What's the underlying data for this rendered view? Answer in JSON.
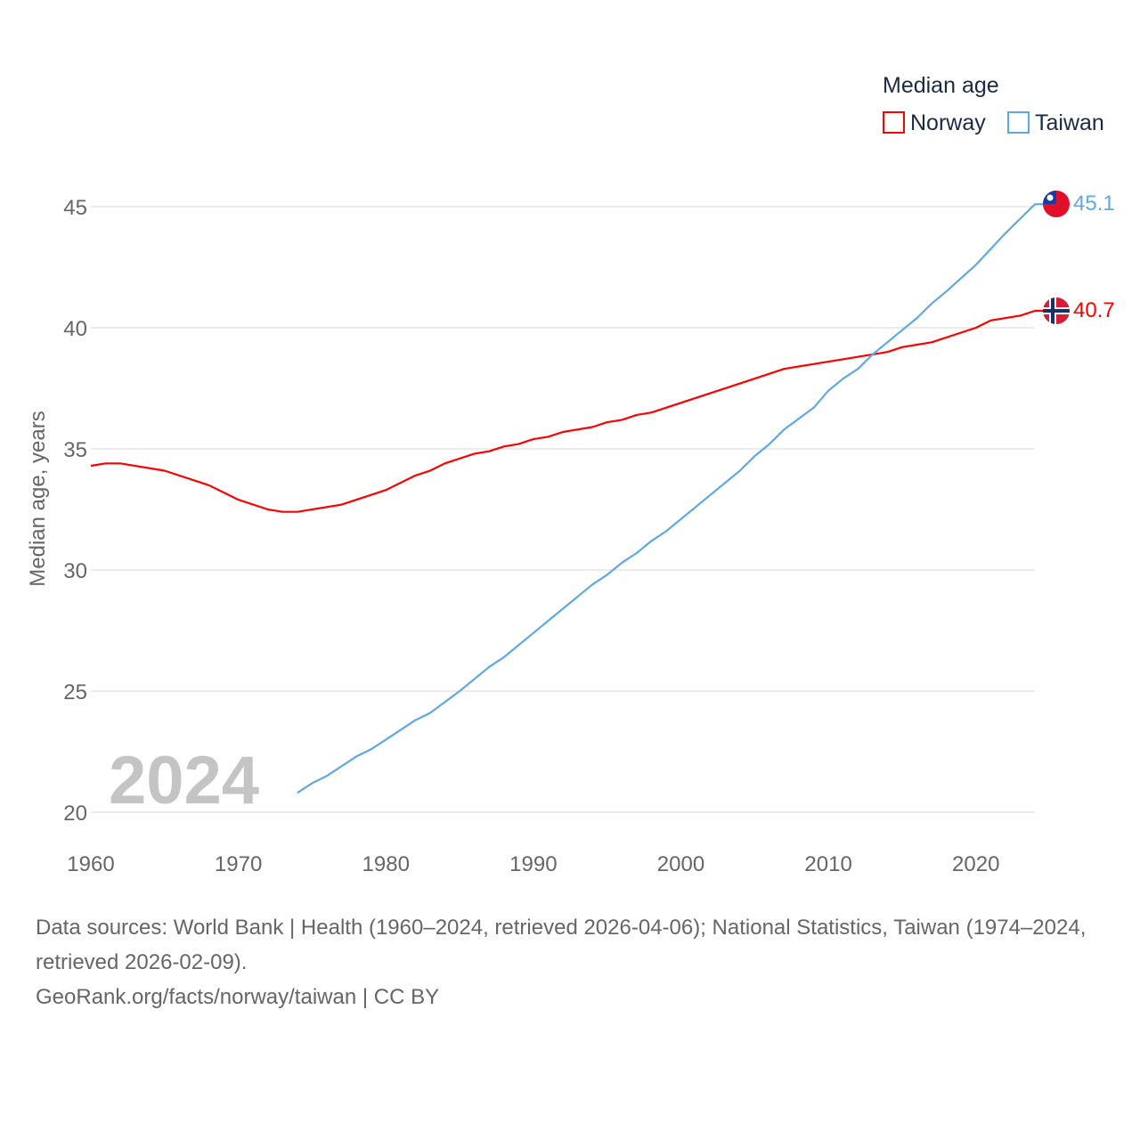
{
  "chart_data": {
    "type": "line",
    "ylabel": "Median age, years",
    "xlabel": "",
    "xlim": [
      1960,
      2024
    ],
    "ylim": [
      20,
      45
    ],
    "yticks": [
      20,
      25,
      30,
      35,
      40,
      45
    ],
    "xticks": [
      1960,
      1970,
      1980,
      1990,
      2000,
      2010,
      2020
    ],
    "grid": true,
    "year_watermark": "2024",
    "legend": {
      "title": "Median age",
      "placement": "top-right"
    },
    "series": [
      {
        "name": "Norway",
        "color": "#ff0000",
        "end_label": "40.7",
        "flag": "norway-flag",
        "x": [
          1960,
          1961,
          1962,
          1965,
          1968,
          1970,
          1972,
          1973,
          1974,
          1977,
          1980,
          1982,
          1983,
          1984,
          1986,
          1987,
          1988,
          1989,
          1990,
          1991,
          1992,
          1994,
          1995,
          1996,
          1997,
          1998,
          2000,
          2004,
          2007,
          2010,
          2013,
          2014,
          2015,
          2017,
          2020,
          2021,
          2023,
          2024
        ],
        "y": [
          34.3,
          34.4,
          34.4,
          34.1,
          33.5,
          32.9,
          32.5,
          32.4,
          32.4,
          32.7,
          33.3,
          33.9,
          34.1,
          34.4,
          34.8,
          34.9,
          35.1,
          35.2,
          35.4,
          35.5,
          35.7,
          35.9,
          36.1,
          36.2,
          36.4,
          36.5,
          36.9,
          37.7,
          38.3,
          38.6,
          38.9,
          39.0,
          39.2,
          39.4,
          40.0,
          40.3,
          40.5,
          40.7
        ]
      },
      {
        "name": "Taiwan",
        "color": "#5fa8e8",
        "end_label": "45.1",
        "flag": "taiwan-flag",
        "x": [
          1974,
          1975,
          1976,
          1978,
          1979,
          1980,
          1982,
          1983,
          1985,
          1987,
          1988,
          1990,
          1991,
          1992,
          1994,
          1995,
          1996,
          1997,
          1998,
          1999,
          2000,
          2002,
          2004,
          2005,
          2006,
          2007,
          2009,
          2010,
          2011,
          2012,
          2013,
          2014,
          2015,
          2016,
          2017,
          2018,
          2020,
          2022,
          2024
        ],
        "y": [
          20.8,
          21.2,
          21.5,
          22.3,
          22.6,
          23.0,
          23.8,
          24.1,
          25.0,
          26.0,
          26.4,
          27.4,
          27.9,
          28.4,
          29.4,
          29.8,
          30.3,
          30.7,
          31.2,
          31.6,
          32.1,
          33.1,
          34.1,
          34.7,
          35.2,
          35.8,
          36.7,
          37.4,
          37.9,
          38.3,
          38.9,
          39.4,
          39.9,
          40.4,
          41.0,
          41.5,
          42.6,
          43.9,
          45.1
        ]
      }
    ]
  },
  "footer": {
    "sources": "Data sources: World Bank | Health (1960–2024, retrieved 2026-04-06); National Statistics, Taiwan (1974–2024, retrieved 2026-02-09).",
    "credit": "GeoRank.org/facts/norway/taiwan | CC BY"
  }
}
